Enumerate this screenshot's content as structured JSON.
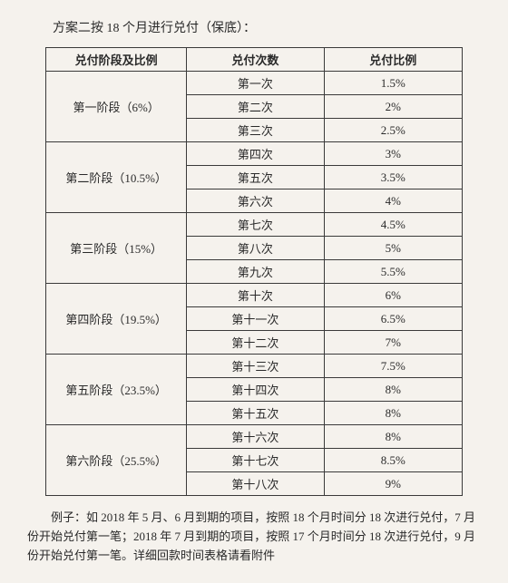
{
  "title": "方案二按 18 个月进行兑付（保底）：",
  "headers": {
    "stage": "兑付阶段及比例",
    "count": "兑付次数",
    "ratio": "兑付比例"
  },
  "stages": [
    {
      "label": "第一阶段（6%）",
      "rows": [
        {
          "count": "第一次",
          "ratio": "1.5%"
        },
        {
          "count": "第二次",
          "ratio": "2%"
        },
        {
          "count": "第三次",
          "ratio": "2.5%"
        }
      ]
    },
    {
      "label": "第二阶段（10.5%）",
      "rows": [
        {
          "count": "第四次",
          "ratio": "3%"
        },
        {
          "count": "第五次",
          "ratio": "3.5%"
        },
        {
          "count": "第六次",
          "ratio": "4%"
        }
      ]
    },
    {
      "label": "第三阶段（15%）",
      "rows": [
        {
          "count": "第七次",
          "ratio": "4.5%"
        },
        {
          "count": "第八次",
          "ratio": "5%"
        },
        {
          "count": "第九次",
          "ratio": "5.5%"
        }
      ]
    },
    {
      "label": "第四阶段（19.5%）",
      "rows": [
        {
          "count": "第十次",
          "ratio": "6%"
        },
        {
          "count": "第十一次",
          "ratio": "6.5%"
        },
        {
          "count": "第十二次",
          "ratio": "7%"
        }
      ]
    },
    {
      "label": "第五阶段（23.5%）",
      "rows": [
        {
          "count": "第十三次",
          "ratio": "7.5%"
        },
        {
          "count": "第十四次",
          "ratio": "8%"
        },
        {
          "count": "第十五次",
          "ratio": "8%"
        }
      ]
    },
    {
      "label": "第六阶段（25.5%）",
      "rows": [
        {
          "count": "第十六次",
          "ratio": "8%"
        },
        {
          "count": "第十七次",
          "ratio": "8.5%"
        },
        {
          "count": "第十八次",
          "ratio": "9%"
        }
      ]
    }
  ],
  "footer": "例子：如 2018 年 5 月、6 月到期的项目，按照 18 个月时间分 18 次进行兑付，7 月份开始兑付第一笔；2018 年 7 月到期的项目，按照 17 个月时间分 18 次进行兑付，9 月份开始兑付第一笔。详细回款时间表格请看附件",
  "colors": {
    "background": "#f5f2ed",
    "border": "#3a3a3a",
    "text": "#2a2a2a"
  }
}
